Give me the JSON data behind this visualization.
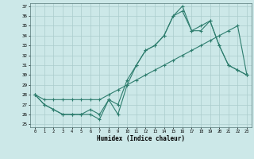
{
  "x": [
    0,
    1,
    2,
    3,
    4,
    5,
    6,
    7,
    8,
    9,
    10,
    11,
    12,
    13,
    14,
    15,
    16,
    17,
    18,
    19,
    20,
    21,
    22,
    23
  ],
  "line1": [
    28,
    27,
    26.5,
    26,
    26,
    26,
    26,
    25.5,
    27.5,
    26,
    29,
    31,
    32.5,
    33,
    34,
    36,
    37,
    34.5,
    34.5,
    35.5,
    33,
    31,
    30.5,
    30
  ],
  "line2": [
    28,
    27.5,
    27.5,
    27.5,
    27.5,
    27.5,
    27.5,
    27.5,
    28,
    28.5,
    29,
    29.5,
    30,
    30.5,
    31,
    31.5,
    32,
    32.5,
    33,
    33.5,
    34,
    34.5,
    35,
    30
  ],
  "line3": [
    28,
    27,
    26.5,
    26,
    26,
    26,
    26.5,
    26,
    27.5,
    27,
    29.5,
    31,
    32.5,
    33,
    34,
    36,
    36.5,
    34.5,
    35,
    35.5,
    33,
    31,
    30.5,
    30
  ],
  "line_color": "#2e7d6e",
  "bg_color": "#cce8e8",
  "grid_color": "#aacccc",
  "xlabel": "Humidex (Indice chaleur)",
  "ylim": [
    25,
    37
  ],
  "xlim": [
    -0.5,
    23.5
  ],
  "yticks": [
    25,
    26,
    27,
    28,
    29,
    30,
    31,
    32,
    33,
    34,
    35,
    36,
    37
  ],
  "xticks": [
    0,
    1,
    2,
    3,
    4,
    5,
    6,
    7,
    8,
    9,
    10,
    11,
    12,
    13,
    14,
    15,
    16,
    17,
    18,
    19,
    20,
    21,
    22,
    23
  ]
}
